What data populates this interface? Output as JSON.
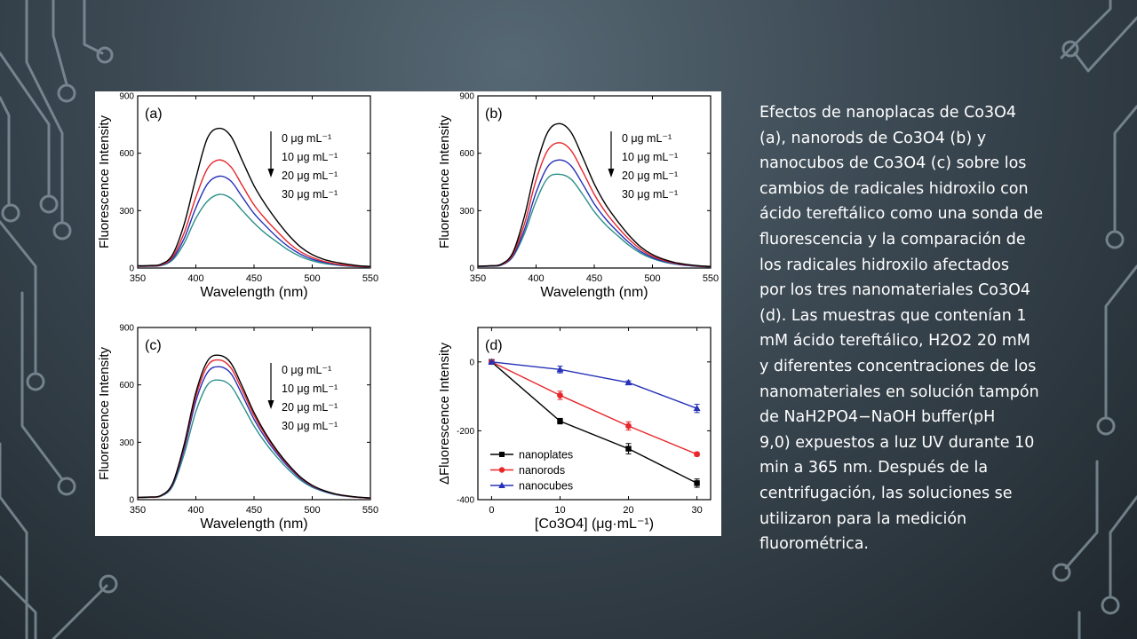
{
  "slide": {
    "caption_lines": [
      "Efectos de nanoplacas de Co3O4",
      "(a), nanorods de Co3O4 (b) y",
      "nanocubos de Co3O4 (c) sobre los",
      "cambios de radicales hidroxilo con",
      "ácido tereftálico como una sonda de",
      "fluorescencia y la comparación de",
      "los radicales hidroxilo afectados",
      "por los tres nanomateriales Co3O4",
      "(d). Las muestras que contenían 1",
      "mM ácido tereftálico, H2O2 20 mM",
      "y diferentes concentraciones de los",
      "nanomateriales en solución tampón",
      "de NaH2PO4−NaOH buffer(pH",
      "9,0) expuestos a luz UV durante 10",
      "min a 365 nm. Después de la",
      "centrifugación, las soluciones se",
      "utilizaron para la medición",
      "fluorométrica."
    ]
  },
  "chart_data": [
    {
      "panel": "(a)",
      "type": "line",
      "xlabel": "Wavelength (nm)",
      "ylabel": "Fluorescence Intensity",
      "xlim": [
        350,
        550
      ],
      "ylim": [
        0,
        900
      ],
      "xticks": [
        350,
        400,
        450,
        500,
        550
      ],
      "yticks": [
        0,
        300,
        600,
        900
      ],
      "legend_position": "top-right",
      "legend": [
        "0 μg mL⁻¹",
        "10 μg mL⁻¹",
        "20 μg mL⁻¹",
        "30 μg mL⁻¹"
      ],
      "colors": [
        "#000000",
        "#e8262a",
        "#2531b7",
        "#2b8f8a"
      ],
      "x": [
        350,
        360,
        370,
        380,
        390,
        400,
        410,
        420,
        430,
        440,
        450,
        460,
        470,
        480,
        490,
        500,
        510,
        520,
        530,
        540,
        550
      ],
      "series": [
        {
          "name": "0 μg mL⁻¹",
          "values": [
            12,
            13,
            20,
            70,
            230,
            470,
            680,
            730,
            690,
            560,
            430,
            330,
            245,
            170,
            110,
            70,
            45,
            30,
            20,
            12,
            8
          ]
        },
        {
          "name": "10 μg mL⁻¹",
          "values": [
            10,
            11,
            17,
            58,
            185,
            370,
            520,
            565,
            530,
            430,
            330,
            255,
            190,
            130,
            85,
            55,
            35,
            22,
            14,
            9,
            6
          ]
        },
        {
          "name": "20 μg mL⁻¹",
          "values": [
            9,
            10,
            15,
            50,
            155,
            315,
            440,
            480,
            455,
            370,
            285,
            220,
            160,
            110,
            72,
            46,
            30,
            19,
            12,
            8,
            5
          ]
        },
        {
          "name": "30 μg mL⁻¹",
          "values": [
            8,
            9,
            13,
            42,
            130,
            260,
            350,
            385,
            365,
            300,
            235,
            180,
            135,
            92,
            60,
            38,
            24,
            16,
            10,
            7,
            4
          ]
        }
      ]
    },
    {
      "panel": "(b)",
      "type": "line",
      "xlabel": "Wavelength (nm)",
      "ylabel": "Fluorescence Intensity",
      "xlim": [
        350,
        550
      ],
      "ylim": [
        0,
        900
      ],
      "xticks": [
        350,
        400,
        450,
        500,
        550
      ],
      "yticks": [
        0,
        300,
        600,
        900
      ],
      "legend_position": "top-right",
      "legend": [
        "0 μg mL⁻¹",
        "10 μg mL⁻¹",
        "20 μg mL⁻¹",
        "30 μg mL⁻¹"
      ],
      "colors": [
        "#000000",
        "#e8262a",
        "#2531b7",
        "#2b8f8a"
      ],
      "x": [
        350,
        360,
        370,
        380,
        390,
        400,
        410,
        420,
        430,
        440,
        450,
        460,
        470,
        480,
        490,
        500,
        510,
        520,
        530,
        540,
        550
      ],
      "series": [
        {
          "name": "0 μg mL⁻¹",
          "values": [
            10,
            12,
            20,
            80,
            270,
            530,
            710,
            755,
            710,
            580,
            440,
            330,
            245,
            170,
            110,
            70,
            45,
            28,
            18,
            12,
            8
          ]
        },
        {
          "name": "10 μg mL⁻¹",
          "values": [
            9,
            11,
            18,
            70,
            230,
            460,
            615,
            655,
            615,
            505,
            385,
            290,
            215,
            150,
            98,
            62,
            40,
            25,
            16,
            10,
            7
          ]
        },
        {
          "name": "20 μg mL⁻¹",
          "values": [
            8,
            10,
            16,
            62,
            200,
            395,
            530,
            565,
            535,
            440,
            335,
            255,
            190,
            132,
            86,
            55,
            35,
            22,
            14,
            9,
            6
          ]
        },
        {
          "name": "30 μg mL⁻¹",
          "values": [
            8,
            9,
            15,
            58,
            180,
            350,
            470,
            490,
            465,
            385,
            295,
            225,
            170,
            118,
            77,
            49,
            31,
            20,
            13,
            8,
            5
          ]
        }
      ]
    },
    {
      "panel": "(c)",
      "type": "line",
      "xlabel": "Wavelength (nm)",
      "ylabel": "Fluorescence Intensity",
      "xlim": [
        350,
        550
      ],
      "ylim": [
        0,
        900
      ],
      "xticks": [
        350,
        400,
        450,
        500,
        550
      ],
      "yticks": [
        0,
        300,
        600,
        900
      ],
      "legend_position": "top-right",
      "legend": [
        "0 μg mL⁻¹",
        "10 μg mL⁻¹",
        "20 μg mL⁻¹",
        "30 μg mL⁻¹"
      ],
      "colors": [
        "#000000",
        "#e8262a",
        "#2531b7",
        "#2b8f8a"
      ],
      "x": [
        350,
        360,
        370,
        380,
        390,
        400,
        410,
        420,
        430,
        440,
        450,
        460,
        470,
        480,
        490,
        500,
        510,
        520,
        530,
        540,
        550
      ],
      "series": [
        {
          "name": "0 μg mL⁻¹",
          "values": [
            12,
            14,
            22,
            85,
            290,
            560,
            725,
            755,
            715,
            590,
            455,
            345,
            255,
            180,
            118,
            75,
            48,
            30,
            20,
            13,
            9
          ]
        },
        {
          "name": "10 μg mL⁻¹",
          "values": [
            11,
            13,
            21,
            82,
            280,
            540,
            700,
            730,
            690,
            570,
            440,
            335,
            248,
            175,
            115,
            73,
            47,
            29,
            19,
            12,
            8
          ]
        },
        {
          "name": "20 μg mL⁻¹",
          "values": [
            11,
            13,
            20,
            78,
            265,
            515,
            665,
            695,
            660,
            545,
            420,
            320,
            238,
            168,
            110,
            70,
            45,
            28,
            18,
            12,
            8
          ]
        },
        {
          "name": "30 μg mL⁻¹",
          "values": [
            10,
            12,
            18,
            70,
            240,
            460,
            600,
            625,
            595,
            495,
            385,
            295,
            220,
            155,
            102,
            65,
            42,
            26,
            17,
            11,
            7
          ]
        }
      ]
    },
    {
      "panel": "(d)",
      "type": "line",
      "xlabel": "[Co3O4] (μg·mL⁻¹)",
      "ylabel": "ΔFluorescence Intensity",
      "xlim": [
        -2,
        32
      ],
      "ylim": [
        -400,
        100
      ],
      "xticks": [
        0,
        10,
        20,
        30
      ],
      "yticks": [
        -400,
        -200,
        0
      ],
      "legend_position": "bottom-left",
      "categories": [
        0,
        10,
        20,
        30
      ],
      "series": [
        {
          "name": "nanoplates",
          "color": "#000000",
          "marker": "square",
          "values": [
            0,
            -172,
            -252,
            -352
          ],
          "errors": [
            0,
            8,
            15,
            12
          ]
        },
        {
          "name": "nanorods",
          "color": "#e8262a",
          "marker": "circle",
          "values": [
            0,
            -97,
            -186,
            -268
          ],
          "errors": [
            0,
            12,
            12,
            5
          ]
        },
        {
          "name": "nanocubes",
          "color": "#2531b7",
          "marker": "triangle",
          "values": [
            0,
            -22,
            -60,
            -135
          ],
          "errors": [
            0,
            10,
            5,
            12
          ]
        }
      ]
    }
  ]
}
